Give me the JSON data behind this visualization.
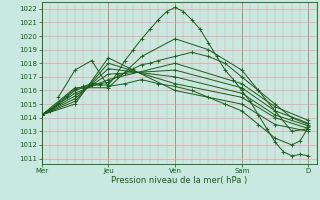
{
  "bg_color": "#c8e8e0",
  "grid_major_color": "#e8a0a8",
  "grid_minor_color": "#e8a0a8",
  "line_color": "#1a5c1a",
  "ylabel_ticks": [
    1011,
    1012,
    1013,
    1014,
    1015,
    1016,
    1017,
    1018,
    1019,
    1020,
    1021,
    1022
  ],
  "ylim": [
    1010.6,
    1022.5
  ],
  "xlabel": "Pression niveau de la mer( hPa )",
  "xtick_labels": [
    "Mer",
    "Jeu",
    "Ven",
    "Sam",
    "D"
  ],
  "xtick_positions": [
    0,
    24,
    48,
    72,
    96
  ],
  "xlim": [
    0,
    99
  ],
  "lines": [
    [
      0,
      1014.2,
      3,
      1014.5,
      6,
      1015.0,
      9,
      1015.5,
      12,
      1016.0,
      15,
      1016.2,
      18,
      1016.4,
      21,
      1016.4,
      24,
      1016.4,
      27,
      1017.2,
      30,
      1018.2,
      33,
      1019.0,
      36,
      1019.8,
      39,
      1020.5,
      42,
      1021.2,
      45,
      1021.8,
      48,
      1022.1,
      51,
      1021.8,
      54,
      1021.2,
      57,
      1020.5,
      60,
      1019.5,
      63,
      1018.5,
      66,
      1017.5,
      69,
      1016.8,
      72,
      1016.0,
      75,
      1015.2,
      78,
      1014.2,
      81,
      1013.2,
      84,
      1012.2,
      87,
      1011.5,
      90,
      1011.2,
      93,
      1011.3,
      96,
      1011.2
    ],
    [
      0,
      1014.2,
      3,
      1014.6,
      6,
      1015.1,
      9,
      1015.6,
      12,
      1016.1,
      15,
      1016.3,
      18,
      1016.5,
      21,
      1016.5,
      24,
      1016.6,
      27,
      1017.0,
      30,
      1017.3,
      33,
      1017.6,
      36,
      1017.9,
      39,
      1018.0,
      42,
      1018.2,
      48,
      1018.5,
      54,
      1018.8,
      60,
      1018.5,
      66,
      1018.0,
      72,
      1017.0,
      78,
      1016.0,
      84,
      1015.0,
      90,
      1014.0,
      96,
      1013.5
    ],
    [
      0,
      1014.2,
      12,
      1015.8,
      24,
      1016.8,
      48,
      1018.0,
      72,
      1016.5,
      84,
      1014.8,
      96,
      1013.8
    ],
    [
      0,
      1014.2,
      12,
      1015.6,
      24,
      1017.2,
      48,
      1017.5,
      72,
      1016.2,
      84,
      1014.5,
      96,
      1013.6
    ],
    [
      0,
      1014.2,
      12,
      1015.4,
      24,
      1017.6,
      48,
      1017.0,
      72,
      1015.8,
      84,
      1014.2,
      96,
      1013.4
    ],
    [
      0,
      1014.2,
      12,
      1015.2,
      24,
      1018.0,
      48,
      1016.5,
      72,
      1015.5,
      84,
      1014.0,
      96,
      1013.2
    ],
    [
      0,
      1014.2,
      12,
      1015.0,
      24,
      1018.4,
      48,
      1016.0,
      72,
      1015.0,
      84,
      1013.5,
      96,
      1013.0
    ],
    [
      0,
      1014.2,
      12,
      1016.2,
      24,
      1016.2,
      36,
      1018.5,
      48,
      1019.8,
      60,
      1019.0,
      72,
      1017.5,
      78,
      1016.0,
      84,
      1014.5,
      90,
      1013.0,
      96,
      1013.2
    ],
    [
      6,
      1015.5,
      12,
      1017.5,
      18,
      1018.2,
      24,
      1016.3,
      30,
      1016.5,
      36,
      1016.8,
      42,
      1016.5,
      48,
      1016.3,
      54,
      1016.0,
      60,
      1015.5,
      66,
      1015.0,
      72,
      1014.5,
      78,
      1013.5,
      84,
      1012.5,
      90,
      1012.0,
      93,
      1012.3,
      96,
      1013.3
    ]
  ]
}
